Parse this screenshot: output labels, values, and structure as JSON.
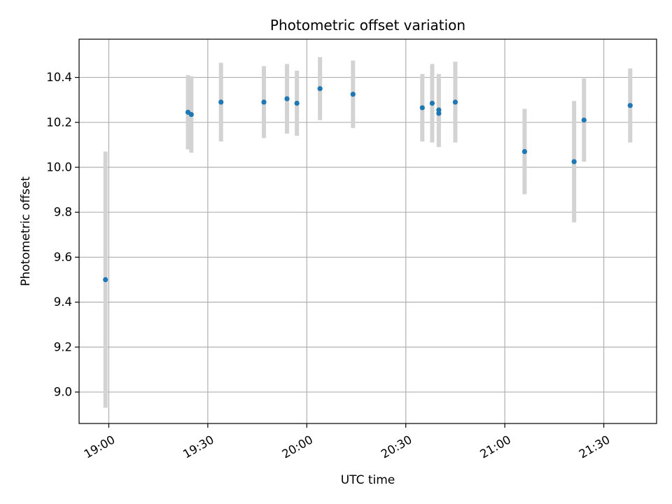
{
  "chart_data": {
    "type": "scatter",
    "title": "Photometric offset variation",
    "xlabel": "UTC time",
    "ylabel": "Photometric offset",
    "x_ticks": [
      "19:00",
      "19:30",
      "20:00",
      "20:30",
      "21:00",
      "21:30"
    ],
    "y_ticks": [
      "9.0",
      "9.2",
      "9.4",
      "9.6",
      "9.8",
      "10.0",
      "10.2",
      "10.4"
    ],
    "xlim": [
      "18:51",
      "21:46"
    ],
    "ylim": [
      8.86,
      10.57
    ],
    "grid": true,
    "colors": {
      "point": "#1f77b4",
      "errorbar": "#d3d3d3",
      "grid": "#b0b0b0"
    },
    "points": [
      {
        "x": "18:59",
        "y": 9.5,
        "err": 0.57
      },
      {
        "x": "19:24",
        "y": 10.245,
        "err": 0.165
      },
      {
        "x": "19:25",
        "y": 10.235,
        "err": 0.17
      },
      {
        "x": "19:34",
        "y": 10.29,
        "err": 0.175
      },
      {
        "x": "19:47",
        "y": 10.29,
        "err": 0.16
      },
      {
        "x": "19:54",
        "y": 10.305,
        "err": 0.155
      },
      {
        "x": "19:57",
        "y": 10.285,
        "err": 0.145
      },
      {
        "x": "20:04",
        "y": 10.35,
        "err": 0.14
      },
      {
        "x": "20:14",
        "y": 10.325,
        "err": 0.15
      },
      {
        "x": "20:35",
        "y": 10.265,
        "err": 0.15
      },
      {
        "x": "20:38",
        "y": 10.285,
        "err": 0.175
      },
      {
        "x": "20:40",
        "y": 10.24,
        "err": 0.15
      },
      {
        "x": "20:40",
        "y": 10.255,
        "err": 0.16
      },
      {
        "x": "20:45",
        "y": 10.29,
        "err": 0.18
      },
      {
        "x": "21:06",
        "y": 10.07,
        "err": 0.19
      },
      {
        "x": "21:21",
        "y": 10.025,
        "err": 0.27
      },
      {
        "x": "21:24",
        "y": 10.21,
        "err": 0.185
      },
      {
        "x": "21:38",
        "y": 10.275,
        "err": 0.165
      }
    ]
  }
}
